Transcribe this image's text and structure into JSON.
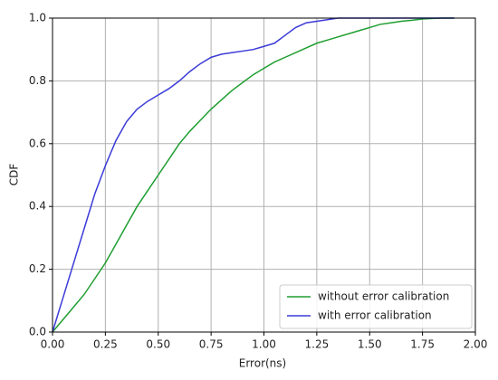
{
  "chart_data": {
    "type": "line",
    "x_label": "Error(ns)",
    "y_label": "CDF",
    "x": [
      0,
      0.05,
      0.1,
      0.15,
      0.2,
      0.25,
      0.3,
      0.35,
      0.4,
      0.45,
      0.5,
      0.55,
      0.6,
      0.65,
      0.7,
      0.75,
      0.8,
      0.85,
      0.9,
      0.95,
      1.0,
      1.05,
      1.1,
      1.15,
      1.2,
      1.25,
      1.3,
      1.35,
      1.4,
      1.45,
      1.5,
      1.55,
      1.6,
      1.65,
      1.7,
      1.75,
      1.8,
      1.85,
      1.9
    ],
    "series": [
      {
        "name": "without error calibration",
        "color": "#1f9e30",
        "values": [
          0,
          0.04,
          0.08,
          0.12,
          0.17,
          0.22,
          0.28,
          0.34,
          0.4,
          0.45,
          0.5,
          0.55,
          0.6,
          0.64,
          0.675,
          0.71,
          0.74,
          0.77,
          0.795,
          0.82,
          0.84,
          0.86,
          0.875,
          0.89,
          0.905,
          0.92,
          0.93,
          0.94,
          0.95,
          0.96,
          0.97,
          0.98,
          0.985,
          0.99,
          0.993,
          0.997,
          0.999,
          1.0,
          1.0
        ]
      },
      {
        "name": "with error calibration",
        "color": "#3a3ad8",
        "values": [
          0,
          0.11,
          0.22,
          0.33,
          0.44,
          0.53,
          0.61,
          0.67,
          0.71,
          0.735,
          0.755,
          0.775,
          0.8,
          0.83,
          0.855,
          0.875,
          0.885,
          0.89,
          0.895,
          0.9,
          0.91,
          0.92,
          0.945,
          0.97,
          0.985,
          0.99,
          0.995,
          1.0,
          1.0,
          1.0,
          1.0,
          1.0,
          1.0,
          1.0,
          1.0,
          1.0,
          1.0,
          1.0,
          1.0
        ]
      }
    ],
    "xlim": [
      0,
      2
    ],
    "ylim": [
      0,
      1
    ],
    "xticks": [
      {
        "value": 0,
        "label": "0.00"
      },
      {
        "value": 0.25,
        "label": "0.25"
      },
      {
        "value": 0.5,
        "label": "0.50"
      },
      {
        "value": 0.75,
        "label": "0.75"
      },
      {
        "value": 1,
        "label": "1.00"
      },
      {
        "value": 1.25,
        "label": "1.25"
      },
      {
        "value": 1.5,
        "label": "1.50"
      },
      {
        "value": 1.75,
        "label": "1.75"
      },
      {
        "value": 2,
        "label": "2.00"
      }
    ],
    "yticks": [
      {
        "value": 0,
        "label": "0.0"
      },
      {
        "value": 0.2,
        "label": "0.2"
      },
      {
        "value": 0.4,
        "label": "0.4"
      },
      {
        "value": 0.6,
        "label": "0.6"
      },
      {
        "value": 0.8,
        "label": "0.8"
      },
      {
        "value": 1,
        "label": "1.0"
      }
    ],
    "grid": true,
    "legend": "lower right"
  }
}
